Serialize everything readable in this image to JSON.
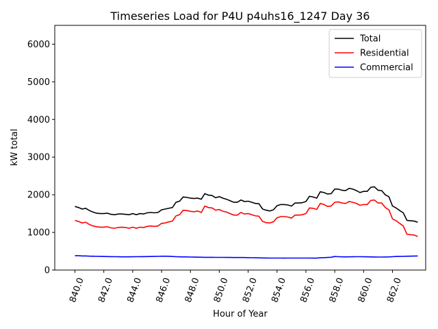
{
  "chart_data": {
    "type": "line",
    "title": "Timeseries Load for P4U p4uhs16_1247  Day 36",
    "xlabel": "Hour of Year",
    "ylabel": "kW total",
    "xlim": [
      838.6,
      864.3
    ],
    "ylim": [
      0,
      6500
    ],
    "xticks": [
      840,
      842,
      844,
      846,
      848,
      850,
      852,
      854,
      856,
      858,
      860,
      862
    ],
    "xtick_labels": [
      "840.0",
      "842.0",
      "844.0",
      "846.0",
      "848.0",
      "850.0",
      "852.0",
      "854.0",
      "856.0",
      "858.0",
      "860.0",
      "862.0"
    ],
    "yticks": [
      0,
      1000,
      2000,
      3000,
      4000,
      5000,
      6000
    ],
    "ytick_labels": [
      "0",
      "1000",
      "2000",
      "3000",
      "4000",
      "5000",
      "6000"
    ],
    "legend_position": "top-right",
    "grid": false,
    "x": [
      840.0,
      840.25,
      840.5,
      840.75,
      841.0,
      841.25,
      841.5,
      841.75,
      842.0,
      842.25,
      842.5,
      842.75,
      843.0,
      843.25,
      843.5,
      843.75,
      844.0,
      844.25,
      844.5,
      844.75,
      845.0,
      845.25,
      845.5,
      845.75,
      846.0,
      846.25,
      846.5,
      846.75,
      847.0,
      847.25,
      847.5,
      847.75,
      848.0,
      848.25,
      848.5,
      848.75,
      849.0,
      849.25,
      849.5,
      849.75,
      850.0,
      850.25,
      850.5,
      850.75,
      851.0,
      851.25,
      851.5,
      851.75,
      852.0,
      852.25,
      852.5,
      852.75,
      853.0,
      853.25,
      853.5,
      853.75,
      854.0,
      854.25,
      854.5,
      854.75,
      855.0,
      855.25,
      855.5,
      855.75,
      856.0,
      856.25,
      856.5,
      856.75,
      857.0,
      857.25,
      857.5,
      857.75,
      858.0,
      858.25,
      858.5,
      858.75,
      859.0,
      859.25,
      859.5,
      859.75,
      860.0,
      860.25,
      860.5,
      860.75,
      861.0,
      861.25,
      861.5,
      861.75,
      862.0,
      862.25,
      862.5,
      862.75,
      863.0,
      863.25,
      863.5,
      863.75
    ],
    "series": [
      {
        "name": "Total",
        "color": "#000000",
        "values": [
          1690,
          1660,
          1620,
          1640,
          1580,
          1540,
          1510,
          1500,
          1500,
          1510,
          1480,
          1470,
          1490,
          1490,
          1480,
          1470,
          1500,
          1470,
          1500,
          1490,
          1520,
          1530,
          1520,
          1530,
          1600,
          1620,
          1640,
          1660,
          1800,
          1830,
          1940,
          1930,
          1910,
          1900,
          1910,
          1880,
          2030,
          1990,
          1980,
          1920,
          1950,
          1910,
          1880,
          1840,
          1800,
          1800,
          1860,
          1820,
          1830,
          1800,
          1770,
          1760,
          1620,
          1590,
          1570,
          1600,
          1710,
          1740,
          1740,
          1730,
          1700,
          1780,
          1780,
          1790,
          1820,
          1960,
          1940,
          1910,
          2080,
          2060,
          2020,
          2030,
          2150,
          2150,
          2120,
          2110,
          2170,
          2150,
          2110,
          2060,
          2090,
          2090,
          2200,
          2210,
          2120,
          2110,
          2000,
          1950,
          1700,
          1650,
          1580,
          1520,
          1320,
          1310,
          1300,
          1270
        ]
      },
      {
        "name": "Residential",
        "color": "#ff0000",
        "values": [
          1320,
          1290,
          1250,
          1270,
          1210,
          1170,
          1150,
          1140,
          1140,
          1150,
          1120,
          1110,
          1130,
          1140,
          1130,
          1110,
          1140,
          1110,
          1140,
          1130,
          1160,
          1170,
          1160,
          1170,
          1240,
          1250,
          1280,
          1300,
          1440,
          1470,
          1590,
          1580,
          1560,
          1550,
          1570,
          1530,
          1700,
          1660,
          1650,
          1590,
          1610,
          1560,
          1540,
          1500,
          1460,
          1460,
          1530,
          1490,
          1500,
          1470,
          1440,
          1430,
          1290,
          1260,
          1250,
          1280,
          1390,
          1420,
          1420,
          1410,
          1380,
          1460,
          1460,
          1470,
          1500,
          1650,
          1640,
          1610,
          1770,
          1740,
          1690,
          1700,
          1800,
          1810,
          1780,
          1770,
          1820,
          1800,
          1770,
          1720,
          1740,
          1740,
          1850,
          1860,
          1780,
          1780,
          1660,
          1600,
          1360,
          1310,
          1240,
          1170,
          950,
          940,
          930,
          890
        ]
      },
      {
        "name": "Commercial",
        "color": "#0000ff",
        "values": [
          380,
          380,
          375,
          375,
          370,
          368,
          365,
          362,
          360,
          358,
          356,
          355,
          354,
          352,
          352,
          352,
          354,
          355,
          356,
          357,
          358,
          360,
          362,
          364,
          368,
          368,
          366,
          360,
          355,
          352,
          350,
          350,
          346,
          344,
          342,
          340,
          339,
          339,
          338,
          337,
          336,
          336,
          335,
          335,
          334,
          334,
          333,
          333,
          330,
          328,
          326,
          324,
          322,
          320,
          318,
          318,
          318,
          318,
          317,
          318,
          318,
          318,
          318,
          318,
          318,
          318,
          316,
          316,
          325,
          330,
          335,
          340,
          360,
          355,
          352,
          350,
          352,
          354,
          355,
          355,
          353,
          352,
          350,
          348,
          346,
          346,
          348,
          350,
          355,
          360,
          362,
          364,
          368,
          370,
          372,
          375
        ]
      }
    ]
  }
}
